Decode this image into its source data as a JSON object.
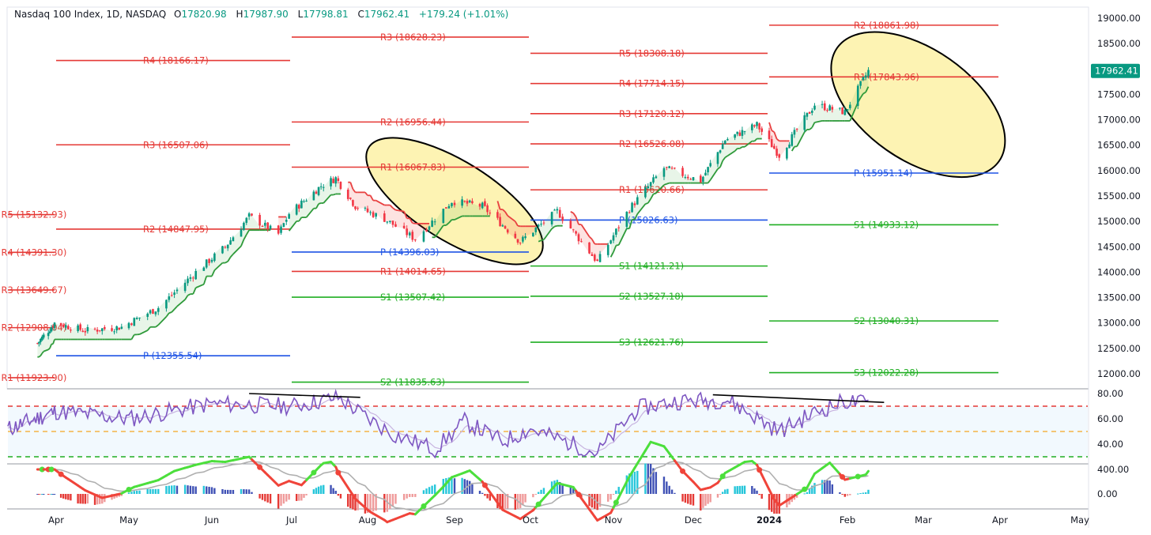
{
  "header": {
    "symbol": "Nasdaq 100 Index, 1D, NASDAQ",
    "open_label": "O",
    "open": "17820.98",
    "high_label": "H",
    "high": "17987.90",
    "low_label": "L",
    "low": "17798.81",
    "close_label": "C",
    "close": "17962.41",
    "change": "+179.24 (+1.01%)"
  },
  "chart_data": [
    {
      "type": "candlestick",
      "title": "Nasdaq 100 Index, 1D, NASDAQ",
      "ylim": [
        11700,
        19100
      ],
      "y_ticks": [
        "19000.00",
        "18500.00",
        "18000.00",
        "17500.00",
        "17000.00",
        "16500.00",
        "16000.00",
        "15500.00",
        "15000.00",
        "14500.00",
        "14000.00",
        "13500.00",
        "13000.00",
        "12500.00",
        "12000.00"
      ],
      "x_labels": [
        "Apr",
        "May",
        "Jun",
        "Jul",
        "Aug",
        "Sep",
        "Oct",
        "Nov",
        "Dec",
        "2024",
        "Feb",
        "Mar",
        "Apr",
        "May"
      ],
      "last_price": "17962.41",
      "price_path": [
        [
          "2023-03-20",
          12600
        ],
        [
          "2023-03-31",
          13000
        ],
        [
          "2023-04-13",
          12850
        ],
        [
          "2023-04-28",
          12920
        ],
        [
          "2023-05-12",
          13300
        ],
        [
          "2023-05-26",
          14000
        ],
        [
          "2023-06-06",
          14500
        ],
        [
          "2023-06-15",
          15100
        ],
        [
          "2023-06-26",
          14750
        ],
        [
          "2023-06-30",
          15150
        ],
        [
          "2023-07-13",
          15700
        ],
        [
          "2023-07-19",
          15850
        ],
        [
          "2023-07-27",
          15300
        ],
        [
          "2023-08-07",
          15050
        ],
        [
          "2023-08-18",
          14650
        ],
        [
          "2023-08-31",
          15400
        ],
        [
          "2023-09-12",
          15300
        ],
        [
          "2023-09-27",
          14600
        ],
        [
          "2023-10-11",
          15200
        ],
        [
          "2023-10-26",
          14200
        ],
        [
          "2023-11-07",
          15250
        ],
        [
          "2023-11-20",
          16050
        ],
        [
          "2023-12-04",
          15800
        ],
        [
          "2023-12-14",
          16600
        ],
        [
          "2023-12-27",
          16900
        ],
        [
          "2024-01-05",
          16300
        ],
        [
          "2024-01-19",
          17300
        ],
        [
          "2024-01-31",
          17150
        ],
        [
          "2024-02-09",
          17962
        ]
      ],
      "pivot_levels": [
        {
          "label": "R1 (11923.90)",
          "value": 11923.9,
          "color": "#e53935",
          "from": "2023-03-01",
          "to": "2023-04-01"
        },
        {
          "label": "P (12355.54)",
          "value": 12355.54,
          "color": "#1e53e5",
          "from": "2023-04-01",
          "to": "2023-07-01"
        },
        {
          "label": "R2 (12908.04)",
          "value": 12908.04,
          "color": "#e53935",
          "from": "2023-03-01",
          "to": "2023-04-01"
        },
        {
          "label": "R3 (13649.67)",
          "value": 13649.67,
          "color": "#e53935",
          "from": "2023-03-01",
          "to": "2023-04-01"
        },
        {
          "label": "R4 (14391.30)",
          "value": 14391.3,
          "color": "#e53935",
          "from": "2023-03-01",
          "to": "2023-04-01"
        },
        {
          "label": "R5 (15132.93)",
          "value": 15132.93,
          "color": "#e53935",
          "from": "2023-03-01",
          "to": "2023-04-01"
        },
        {
          "label": "R1 (14014.65)",
          "value": 14014.65,
          "color": "#e53935",
          "from": "2023-07-01",
          "to": "2023-10-01"
        },
        {
          "label": "R2 (14847.95)",
          "value": 14847.95,
          "color": "#e53935",
          "from": "2023-04-01",
          "to": "2023-07-01"
        },
        {
          "label": "R3 (16507.06)",
          "value": 16507.06,
          "color": "#e53935",
          "from": "2023-04-01",
          "to": "2023-07-01"
        },
        {
          "label": "R4 (18166.17)",
          "value": 18166.17,
          "color": "#e53935",
          "from": "2023-04-01",
          "to": "2023-07-01"
        },
        {
          "label": "S1 (13507.42)",
          "value": 13507.42,
          "color": "#1fae22",
          "from": "2023-07-01",
          "to": "2023-10-01"
        },
        {
          "label": "S2 (11835.63)",
          "value": 11835.63,
          "color": "#1fae22",
          "from": "2023-07-01",
          "to": "2023-10-01"
        },
        {
          "label": "P (14396.03)",
          "value": 14396.03,
          "color": "#1e53e5",
          "from": "2023-07-01",
          "to": "2023-10-01"
        },
        {
          "label": "R1 (16067.83)",
          "value": 16067.83,
          "color": "#e53935",
          "from": "2023-07-01",
          "to": "2023-10-01"
        },
        {
          "label": "R2 (16956.44)",
          "value": 16956.44,
          "color": "#e53935",
          "from": "2023-07-01",
          "to": "2023-10-01"
        },
        {
          "label": "R3 (18628.23)",
          "value": 18628.23,
          "color": "#e53935",
          "from": "2023-07-01",
          "to": "2023-10-01"
        },
        {
          "label": "S1 (14121.21)",
          "value": 14121.21,
          "color": "#1fae22",
          "from": "2023-10-01",
          "to": "2024-01-01"
        },
        {
          "label": "S2 (13527.18)",
          "value": 13527.18,
          "color": "#1fae22",
          "from": "2023-10-01",
          "to": "2024-01-01"
        },
        {
          "label": "S3 (12621.76)",
          "value": 12621.76,
          "color": "#1fae22",
          "from": "2023-10-01",
          "to": "2024-01-01"
        },
        {
          "label": "P (15026.63)",
          "value": 15026.63,
          "color": "#1e53e5",
          "from": "2023-10-01",
          "to": "2024-01-01"
        },
        {
          "label": "R1 (15620.66)",
          "value": 15620.66,
          "color": "#e53935",
          "from": "2023-10-01",
          "to": "2024-01-01"
        },
        {
          "label": "R2 (16526.08)",
          "value": 16526.08,
          "color": "#e53935",
          "from": "2023-10-01",
          "to": "2024-01-01"
        },
        {
          "label": "R3 (17120.12)",
          "value": 17120.12,
          "color": "#e53935",
          "from": "2023-10-01",
          "to": "2024-01-01"
        },
        {
          "label": "R4 (17714.15)",
          "value": 17714.15,
          "color": "#e53935",
          "from": "2023-10-01",
          "to": "2024-01-01"
        },
        {
          "label": "R5 (18308.18)",
          "value": 18308.18,
          "color": "#e53935",
          "from": "2023-10-01",
          "to": "2024-01-01"
        },
        {
          "label": "S1 (14933.12)",
          "value": 14933.12,
          "color": "#1fae22",
          "from": "2024-01-01",
          "to": "2024-04-01"
        },
        {
          "label": "S2 (13040.31)",
          "value": 13040.31,
          "color": "#1fae22",
          "from": "2024-01-01",
          "to": "2024-04-01"
        },
        {
          "label": "S3 (12022.28)",
          "value": 12022.28,
          "color": "#1fae22",
          "from": "2024-01-01",
          "to": "2024-04-01"
        },
        {
          "label": "P (15951.14)",
          "value": 15951.14,
          "color": "#1e53e5",
          "from": "2024-01-01",
          "to": "2024-04-01"
        },
        {
          "label": "R1 (17843.96)",
          "value": 17843.96,
          "color": "#e53935",
          "from": "2024-01-01",
          "to": "2024-04-01"
        },
        {
          "label": "R2 (18861.98)",
          "value": 18861.98,
          "color": "#e53935",
          "from": "2024-01-01",
          "to": "2024-04-01"
        }
      ],
      "highlight_ellipses": [
        {
          "center": [
            "2023-09-01",
            15400
          ],
          "fill": "#fdf3b3"
        },
        {
          "center": [
            "2024-02-28",
            17300
          ],
          "fill": "#fdf3b3"
        }
      ]
    },
    {
      "type": "line",
      "ylim": [
        25,
        85
      ],
      "y_ticks": [
        "80.00",
        "60.00",
        "40.00"
      ],
      "bands": [
        30,
        50,
        70
      ],
      "divergence_lines": [
        {
          "from": [
            "2023-06-15",
            80
          ],
          "to": [
            "2023-07-29",
            77
          ]
        },
        {
          "from": [
            "2023-12-09",
            79
          ],
          "to": [
            "2024-02-15",
            73
          ]
        }
      ],
      "series_path": [
        [
          "2023-03-01",
          52
        ],
        [
          "2023-04-01",
          66
        ],
        [
          "2023-05-01",
          60
        ],
        [
          "2023-06-01",
          72
        ],
        [
          "2023-07-01",
          70
        ],
        [
          "2023-07-20",
          77
        ],
        [
          "2023-08-10",
          48
        ],
        [
          "2023-08-25",
          36
        ],
        [
          "2023-09-05",
          58
        ],
        [
          "2023-09-20",
          42
        ],
        [
          "2023-10-01",
          52
        ],
        [
          "2023-10-26",
          33
        ],
        [
          "2023-11-10",
          68
        ],
        [
          "2023-11-25",
          74
        ],
        [
          "2023-12-15",
          75
        ],
        [
          "2024-01-05",
          50
        ],
        [
          "2024-01-20",
          66
        ],
        [
          "2024-01-31",
          74
        ],
        [
          "2024-02-09",
          72
        ]
      ]
    },
    {
      "type": "bar",
      "ylim": [
        -150,
        470
      ],
      "y_ticks": [
        "400.00",
        "0.00"
      ]
    }
  ]
}
